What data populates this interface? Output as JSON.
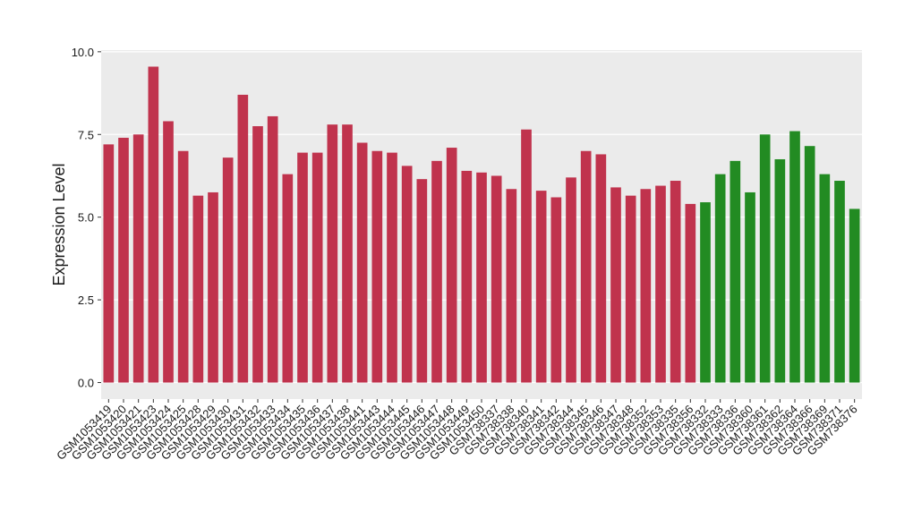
{
  "chart_data": {
    "type": "bar",
    "ylabel": "Expression Level",
    "categories": [
      "GSM1053419",
      "GSM1053420",
      "GSM1053421",
      "GSM1053423",
      "GSM1053424",
      "GSM1053425",
      "GSM1053428",
      "GSM1053429",
      "GSM1053430",
      "GSM1053431",
      "GSM1053432",
      "GSM1053433",
      "GSM1053434",
      "GSM1053435",
      "GSM1053436",
      "GSM1053437",
      "GSM1053438",
      "GSM1053441",
      "GSM1053443",
      "GSM1053444",
      "GSM1053445",
      "GSM1053446",
      "GSM1053447",
      "GSM1053448",
      "GSM1053449",
      "GSM1053450",
      "GSM738337",
      "GSM738338",
      "GSM738340",
      "GSM738341",
      "GSM738342",
      "GSM738344",
      "GSM738345",
      "GSM738346",
      "GSM738347",
      "GSM738348",
      "GSM738352",
      "GSM738353",
      "GSM738335",
      "GSM738356",
      "GSM738332",
      "GSM738333",
      "GSM738336",
      "GSM738360",
      "GSM738361",
      "GSM738362",
      "GSM738364",
      "GSM738366",
      "GSM738369",
      "GSM738371",
      "GSM738376"
    ],
    "values": [
      7.2,
      7.4,
      7.5,
      9.55,
      7.9,
      7.0,
      5.65,
      5.75,
      6.8,
      8.7,
      7.75,
      8.05,
      6.3,
      6.95,
      6.95,
      7.8,
      7.8,
      7.25,
      7.0,
      6.95,
      6.55,
      6.15,
      6.7,
      7.1,
      6.4,
      6.35,
      6.25,
      5.85,
      7.65,
      5.8,
      5.6,
      6.2,
      7.0,
      6.9,
      5.9,
      5.65,
      5.85,
      5.95,
      6.1,
      5.4,
      5.45,
      6.3,
      6.7,
      5.75,
      7.5,
      6.75,
      7.6,
      7.15,
      6.3,
      6.1,
      5.25
    ],
    "colors": [
      "#c0334d",
      "#c0334d",
      "#c0334d",
      "#c0334d",
      "#c0334d",
      "#c0334d",
      "#c0334d",
      "#c0334d",
      "#c0334d",
      "#c0334d",
      "#c0334d",
      "#c0334d",
      "#c0334d",
      "#c0334d",
      "#c0334d",
      "#c0334d",
      "#c0334d",
      "#c0334d",
      "#c0334d",
      "#c0334d",
      "#c0334d",
      "#c0334d",
      "#c0334d",
      "#c0334d",
      "#c0334d",
      "#c0334d",
      "#c0334d",
      "#c0334d",
      "#c0334d",
      "#c0334d",
      "#c0334d",
      "#c0334d",
      "#c0334d",
      "#c0334d",
      "#c0334d",
      "#c0334d",
      "#c0334d",
      "#c0334d",
      "#c0334d",
      "#c0334d",
      "#228b22",
      "#228b22",
      "#228b22",
      "#228b22",
      "#228b22",
      "#228b22",
      "#228b22",
      "#228b22",
      "#228b22",
      "#228b22",
      "#228b22"
    ],
    "ylim": [
      -0.5,
      10.05
    ],
    "yticks": [
      {
        "value": 0,
        "label": "0.0"
      },
      2.5,
      {
        "value": 5,
        "label": "5.0"
      },
      7.5,
      {
        "value": 10,
        "label": "10.0"
      }
    ],
    "grid": true
  }
}
